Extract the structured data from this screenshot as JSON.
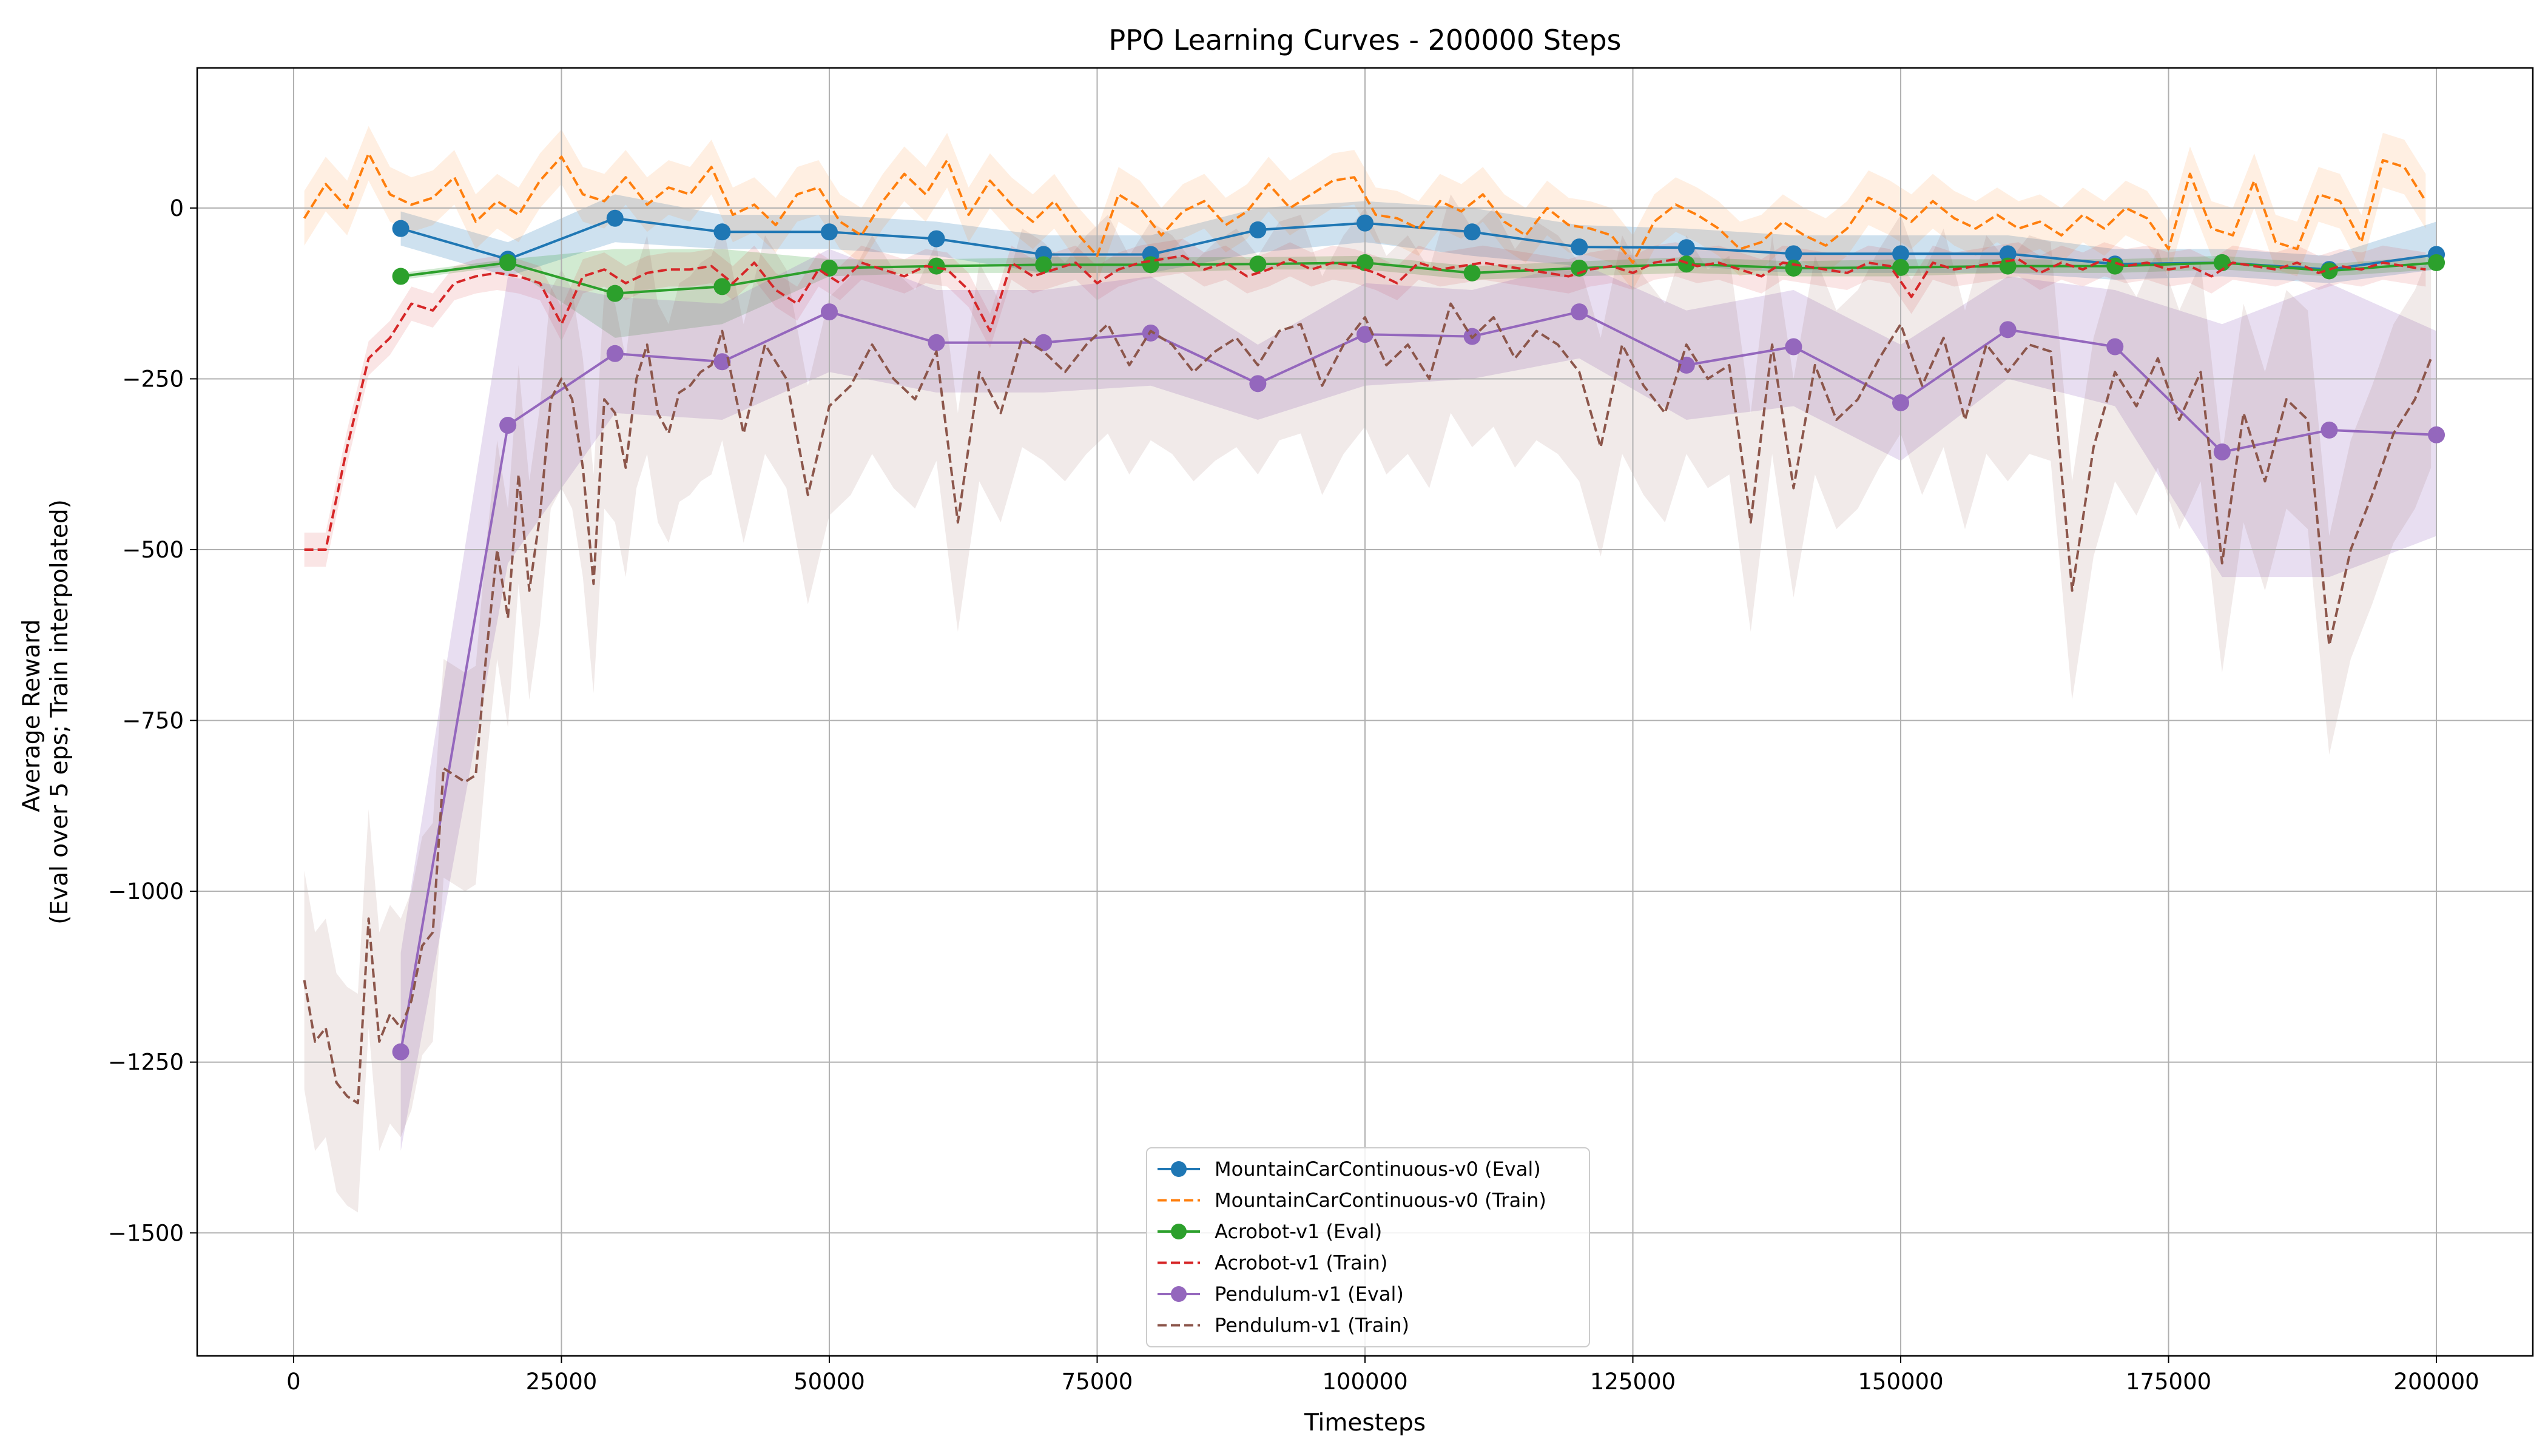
{
  "chart_data": {
    "type": "line",
    "title": "PPO Learning Curves - 200000 Steps",
    "xlabel": "Timesteps",
    "ylabel_lines": [
      "Average Reward",
      "(Eval over 5 eps; Train interpolated)"
    ],
    "xlim": [
      -9000,
      209000
    ],
    "ylim": [
      -1680,
      205
    ],
    "x_ticks": [
      0,
      25000,
      50000,
      75000,
      100000,
      125000,
      150000,
      175000,
      200000
    ],
    "x_tick_labels": [
      "0",
      "25000",
      "50000",
      "75000",
      "100000",
      "125000",
      "150000",
      "175000",
      "200000"
    ],
    "y_ticks": [
      0,
      -250,
      -500,
      -750,
      -1000,
      -1250,
      -1500
    ],
    "y_tick_labels": [
      "0",
      "−250",
      "−500",
      "−750",
      "−1000",
      "−1250",
      "−1500"
    ],
    "grid": true,
    "legend_position": "lower center",
    "eval_x": [
      10000,
      20000,
      30000,
      40000,
      50000,
      60000,
      70000,
      80000,
      90000,
      100000,
      110000,
      120000,
      130000,
      140000,
      150000,
      160000,
      170000,
      180000,
      190000,
      200000
    ],
    "series": [
      {
        "name": "MountainCarContinuous-v0 (Eval)",
        "kind": "eval",
        "color": "#1f77b4",
        "values": [
          -30,
          -75,
          -15,
          -35,
          -35,
          -45,
          -68,
          -68,
          -32,
          -22,
          -35,
          -57,
          -58,
          -67,
          -67,
          -67,
          -82,
          -80,
          -90,
          -68
        ],
        "band": [
          [
            -55,
            -5
          ],
          [
            -100,
            -50
          ],
          [
            -50,
            20
          ],
          [
            -60,
            -10
          ],
          [
            -60,
            -10
          ],
          [
            -70,
            -20
          ],
          [
            -95,
            -40
          ],
          [
            -95,
            -40
          ],
          [
            -65,
            0
          ],
          [
            -50,
            10
          ],
          [
            -70,
            0
          ],
          [
            -85,
            -25
          ],
          [
            -85,
            -30
          ],
          [
            -95,
            -40
          ],
          [
            -95,
            -40
          ],
          [
            -95,
            -40
          ],
          [
            -105,
            -60
          ],
          [
            -100,
            -60
          ],
          [
            -110,
            -70
          ],
          [
            -90,
            -20
          ]
        ]
      },
      {
        "name": "MountainCarContinuous-v0 (Train)",
        "kind": "train",
        "color": "#ff7f0e",
        "x": [
          1000,
          3000,
          5000,
          7000,
          9000,
          11000,
          13000,
          15000,
          17000,
          19000,
          21000,
          23000,
          25000,
          27000,
          29000,
          31000,
          33000,
          35000,
          37000,
          39000,
          41000,
          43000,
          45000,
          47000,
          49000,
          51000,
          53000,
          55000,
          57000,
          59000,
          61000,
          63000,
          65000,
          67000,
          69000,
          71000,
          73000,
          75000,
          77000,
          79000,
          81000,
          83000,
          85000,
          87000,
          89000,
          91000,
          93000,
          95000,
          97000,
          99000,
          101000,
          103000,
          105000,
          107000,
          109000,
          111000,
          113000,
          115000,
          117000,
          119000,
          121000,
          123000,
          125000,
          127000,
          129000,
          131000,
          133000,
          135000,
          137000,
          139000,
          141000,
          143000,
          145000,
          147000,
          149000,
          151000,
          153000,
          155000,
          157000,
          159000,
          161000,
          163000,
          165000,
          167000,
          169000,
          171000,
          173000,
          175000,
          177000,
          179000,
          181000,
          183000,
          185000,
          187000,
          189000,
          191000,
          193000,
          195000,
          197000,
          199000
        ],
        "values": [
          -15,
          35,
          0,
          80,
          20,
          5,
          15,
          45,
          -20,
          10,
          -10,
          40,
          75,
          20,
          10,
          45,
          5,
          30,
          20,
          60,
          -10,
          5,
          -25,
          20,
          30,
          -20,
          -40,
          10,
          50,
          20,
          70,
          -10,
          40,
          5,
          -20,
          10,
          -35,
          -70,
          20,
          0,
          -40,
          -5,
          10,
          -25,
          -5,
          35,
          0,
          20,
          40,
          45,
          -10,
          -15,
          -30,
          10,
          -5,
          20,
          -20,
          -40,
          0,
          -25,
          -30,
          -40,
          -80,
          -20,
          5,
          -10,
          -30,
          -60,
          -50,
          -20,
          -40,
          -55,
          -30,
          15,
          0,
          -20,
          10,
          -15,
          -30,
          -10,
          -30,
          -20,
          -40,
          -10,
          -30,
          0,
          -15,
          -60,
          50,
          -30,
          -40,
          40,
          -50,
          -60,
          20,
          10,
          -50,
          70,
          60,
          10
        ],
        "band_half_width": 40
      },
      {
        "name": "Acrobot-v1 (Eval)",
        "kind": "eval",
        "color": "#2ca02c",
        "values": [
          -100,
          -80,
          -125,
          -115,
          -88,
          -85,
          -83,
          -83,
          -82,
          -80,
          -95,
          -88,
          -82,
          -88,
          -87,
          -85,
          -85,
          -80,
          -92,
          -80
        ],
        "band": [
          [
            -105,
            -95
          ],
          [
            -85,
            -75
          ],
          [
            -190,
            -60
          ],
          [
            -170,
            -60
          ],
          [
            -100,
            -75
          ],
          [
            -95,
            -75
          ],
          [
            -95,
            -72
          ],
          [
            -95,
            -72
          ],
          [
            -90,
            -72
          ],
          [
            -90,
            -70
          ],
          [
            -105,
            -85
          ],
          [
            -100,
            -78
          ],
          [
            -95,
            -72
          ],
          [
            -100,
            -78
          ],
          [
            -100,
            -75
          ],
          [
            -95,
            -75
          ],
          [
            -95,
            -75
          ],
          [
            -90,
            -70
          ],
          [
            -100,
            -82
          ],
          [
            -90,
            -70
          ]
        ]
      },
      {
        "name": "Acrobot-v1 (Train)",
        "kind": "train",
        "color": "#d62728",
        "x": [
          1000,
          3000,
          5000,
          7000,
          9000,
          11000,
          13000,
          15000,
          17000,
          19000,
          21000,
          23000,
          25000,
          27000,
          29000,
          31000,
          33000,
          35000,
          37000,
          39000,
          41000,
          43000,
          45000,
          47000,
          49000,
          51000,
          53000,
          55000,
          57000,
          59000,
          61000,
          63000,
          65000,
          67000,
          69000,
          71000,
          73000,
          75000,
          77000,
          79000,
          81000,
          83000,
          85000,
          87000,
          89000,
          91000,
          93000,
          95000,
          97000,
          99000,
          101000,
          103000,
          105000,
          107000,
          109000,
          111000,
          113000,
          115000,
          117000,
          119000,
          121000,
          123000,
          125000,
          127000,
          129000,
          131000,
          133000,
          135000,
          137000,
          139000,
          141000,
          143000,
          145000,
          147000,
          149000,
          151000,
          153000,
          155000,
          157000,
          159000,
          161000,
          163000,
          165000,
          167000,
          169000,
          171000,
          173000,
          175000,
          177000,
          179000,
          181000,
          183000,
          185000,
          187000,
          189000,
          191000,
          193000,
          195000,
          197000,
          199000
        ],
        "values": [
          -500,
          -500,
          -350,
          -220,
          -190,
          -140,
          -150,
          -110,
          -100,
          -95,
          -100,
          -110,
          -170,
          -100,
          -90,
          -110,
          -95,
          -90,
          -90,
          -85,
          -110,
          -80,
          -120,
          -140,
          -90,
          -110,
          -80,
          -90,
          -100,
          -85,
          -90,
          -120,
          -180,
          -80,
          -100,
          -90,
          -80,
          -110,
          -90,
          -80,
          -75,
          -70,
          -90,
          -80,
          -100,
          -90,
          -75,
          -90,
          -80,
          -85,
          -95,
          -110,
          -80,
          -90,
          -85,
          -80,
          -85,
          -90,
          -95,
          -100,
          -90,
          -85,
          -95,
          -80,
          -75,
          -85,
          -80,
          -90,
          -100,
          -80,
          -85,
          -90,
          -95,
          -80,
          -85,
          -130,
          -80,
          -90,
          -85,
          -80,
          -75,
          -95,
          -80,
          -90,
          -75,
          -85,
          -80,
          -90,
          -85,
          -100,
          -80,
          -85,
          -90,
          -80,
          -95,
          -85,
          -90,
          -80,
          -85,
          -90
        ],
        "band_half_width": 25
      },
      {
        "name": "Pendulum-v1 (Eval)",
        "kind": "eval",
        "color": "#9467bd",
        "values": [
          -1235,
          -318,
          -213,
          -225,
          -152,
          -197,
          -197,
          -183,
          -257,
          -185,
          -188,
          -152,
          -230,
          -203,
          -285,
          -178,
          -203,
          -357,
          -325,
          -332
        ],
        "band": [
          [
            -1380,
            -1090
          ],
          [
            -520,
            -100
          ],
          [
            -300,
            -130
          ],
          [
            -310,
            -140
          ],
          [
            -240,
            -60
          ],
          [
            -270,
            -120
          ],
          [
            -270,
            -120
          ],
          [
            -260,
            -100
          ],
          [
            -310,
            -200
          ],
          [
            -260,
            -110
          ],
          [
            -250,
            -120
          ],
          [
            -220,
            -80
          ],
          [
            -310,
            -150
          ],
          [
            -290,
            -120
          ],
          [
            -370,
            -200
          ],
          [
            -250,
            -100
          ],
          [
            -290,
            -120
          ],
          [
            -540,
            -170
          ],
          [
            -540,
            -110
          ],
          [
            -480,
            -180
          ]
        ]
      },
      {
        "name": "Pendulum-v1 (Train)",
        "kind": "train",
        "color": "#8c564b",
        "x": [
          1000,
          2000,
          3000,
          4000,
          5000,
          6000,
          7000,
          8000,
          9000,
          10000,
          11000,
          12000,
          13000,
          14000,
          15000,
          16000,
          17000,
          18000,
          19000,
          20000,
          21000,
          22000,
          23000,
          24000,
          25000,
          26000,
          27000,
          28000,
          29000,
          30000,
          31000,
          32000,
          33000,
          34000,
          35000,
          36000,
          37000,
          38000,
          39000,
          40000,
          42000,
          44000,
          46000,
          48000,
          50000,
          52000,
          54000,
          56000,
          58000,
          60000,
          62000,
          64000,
          66000,
          68000,
          70000,
          72000,
          74000,
          76000,
          78000,
          80000,
          82000,
          84000,
          86000,
          88000,
          90000,
          92000,
          94000,
          96000,
          98000,
          100000,
          102000,
          104000,
          106000,
          108000,
          110000,
          112000,
          114000,
          116000,
          118000,
          120000,
          122000,
          124000,
          126000,
          128000,
          130000,
          132000,
          134000,
          136000,
          138000,
          140000,
          142000,
          144000,
          146000,
          148000,
          150000,
          152000,
          154000,
          156000,
          158000,
          160000,
          162000,
          164000,
          166000,
          168000,
          170000,
          172000,
          174000,
          176000,
          178000,
          180000,
          182000,
          184000,
          186000,
          188000,
          190000,
          192000,
          194000,
          196000,
          198000,
          199500
        ],
        "values": [
          -1130,
          -1220,
          -1200,
          -1280,
          -1300,
          -1310,
          -1040,
          -1220,
          -1180,
          -1200,
          -1160,
          -1080,
          -1060,
          -820,
          -830,
          -840,
          -830,
          -650,
          -500,
          -600,
          -390,
          -560,
          -450,
          -280,
          -250,
          -280,
          -380,
          -550,
          -280,
          -300,
          -380,
          -250,
          -200,
          -300,
          -330,
          -270,
          -260,
          -240,
          -230,
          -180,
          -330,
          -200,
          -250,
          -420,
          -290,
          -260,
          -200,
          -250,
          -280,
          -210,
          -460,
          -240,
          -300,
          -190,
          -210,
          -240,
          -200,
          -170,
          -230,
          -180,
          -200,
          -240,
          -210,
          -190,
          -230,
          -180,
          -170,
          -260,
          -200,
          -160,
          -230,
          -200,
          -250,
          -140,
          -190,
          -160,
          -220,
          -180,
          -200,
          -240,
          -350,
          -200,
          -260,
          -300,
          -200,
          -250,
          -230,
          -460,
          -200,
          -410,
          -230,
          -310,
          -280,
          -220,
          -170,
          -260,
          -190,
          -310,
          -200,
          -240,
          -200,
          -210,
          -560,
          -350,
          -240,
          -290,
          -220,
          -310,
          -240,
          -520,
          -300,
          -400,
          -280,
          -310,
          -640,
          -500,
          -420,
          -330,
          -280,
          -220
        ],
        "band_half_width": 160
      }
    ]
  }
}
